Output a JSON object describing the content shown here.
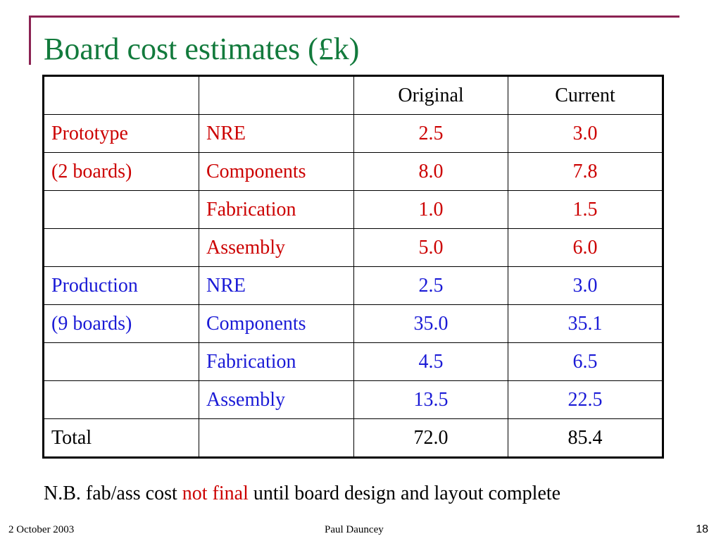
{
  "slide": {
    "title": "Board cost estimates (£k)"
  },
  "table": {
    "headers": [
      "",
      "",
      "Original",
      "Current"
    ],
    "rows": [
      {
        "group": "Prototype",
        "item": "NRE",
        "original": "2.5",
        "current": "3.0",
        "color": "#cc0000"
      },
      {
        "group": "(2 boards)",
        "item": "Components",
        "original": "8.0",
        "current": "7.8",
        "color": "#cc0000"
      },
      {
        "group": "",
        "item": "Fabrication",
        "original": "1.0",
        "current": "1.5",
        "color": "#cc0000"
      },
      {
        "group": "",
        "item": "Assembly",
        "original": "5.0",
        "current": "6.0",
        "color": "#cc0000"
      },
      {
        "group": "Production",
        "item": "NRE",
        "original": "2.5",
        "current": "3.0",
        "color": "#1a1ad6"
      },
      {
        "group": "(9 boards)",
        "item": "Components",
        "original": "35.0",
        "current": "35.1",
        "color": "#1a1ad6"
      },
      {
        "group": "",
        "item": "Fabrication",
        "original": "4.5",
        "current": "6.5",
        "color": "#1a1ad6"
      },
      {
        "group": "",
        "item": "Assembly",
        "original": "13.5",
        "current": "22.5",
        "color": "#1a1ad6"
      }
    ],
    "total": {
      "label": "Total",
      "item": "",
      "original": "72.0",
      "current": "85.4"
    }
  },
  "note": {
    "prefix": "N.B. fab/ass cost ",
    "highlight": "not final",
    "suffix": " until board design and layout complete"
  },
  "footer": {
    "date": "2 October 2003",
    "author": "Paul Dauncey",
    "page": "18"
  },
  "colors": {
    "title": "#127a3c",
    "accent_line": "#8b2252",
    "prototype": "#cc0000",
    "production": "#1a1ad6"
  }
}
